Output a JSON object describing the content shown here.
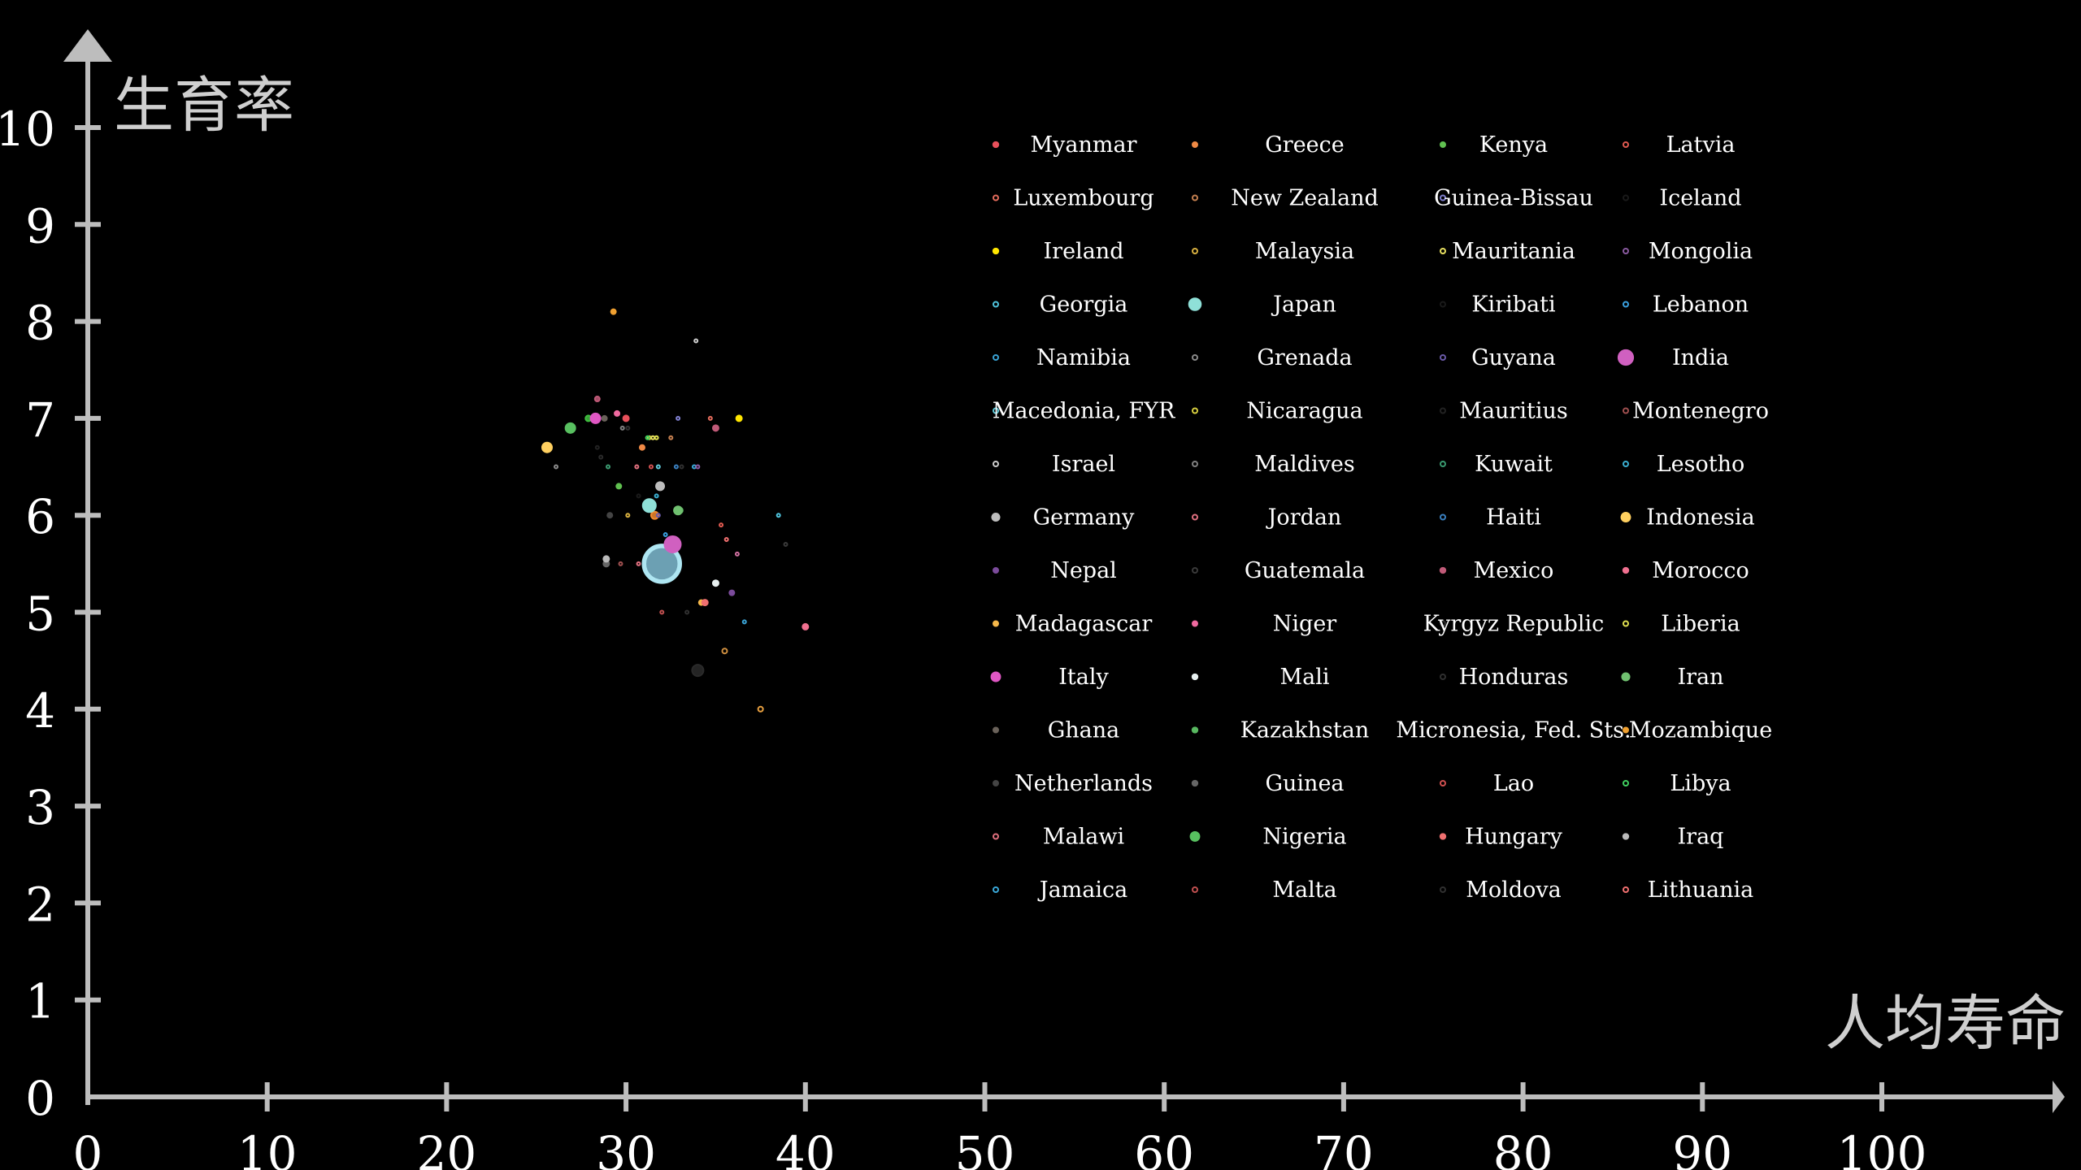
{
  "chart_data": {
    "type": "scatter",
    "xlabel": "人均寿命",
    "ylabel": "生育率",
    "xlim": [
      0,
      110
    ],
    "ylim": [
      0,
      11
    ],
    "x_ticks": [
      "0",
      "10",
      "20",
      "30",
      "40",
      "50",
      "60",
      "70",
      "80",
      "90",
      "100"
    ],
    "y_ticks": [
      "0",
      "1",
      "2",
      "3",
      "4",
      "5",
      "6",
      "7",
      "8",
      "9",
      "10"
    ],
    "grid": false,
    "legend_placement": "right",
    "series": [
      {
        "name": "Myanmar",
        "color": "#e8505b",
        "x": [
          30.0
        ],
        "y": [
          7.0
        ],
        "size": [
          7
        ]
      },
      {
        "name": "Luxembourg",
        "color": "#e46c5c",
        "x": [
          34.7
        ],
        "y": [
          7.0
        ],
        "size": [
          4
        ]
      },
      {
        "name": "Ireland",
        "color": "#ffe600",
        "x": [
          36.3
        ],
        "y": [
          7.0
        ],
        "size": [
          7
        ]
      },
      {
        "name": "Georgia",
        "color": "#4fc3dc",
        "x": [
          38.5
        ],
        "y": [
          6.0
        ],
        "size": [
          4
        ]
      },
      {
        "name": "Namibia",
        "color": "#3aa2d4",
        "x": [
          36.6
        ],
        "y": [
          4.9
        ],
        "size": [
          4
        ]
      },
      {
        "name": "Macedonia, FYR",
        "color": "#5fc8d8",
        "x": [
          31.8
        ],
        "y": [
          6.5
        ],
        "size": [
          4
        ]
      },
      {
        "name": "Israel",
        "color": "#cccccc",
        "x": [
          33.9
        ],
        "y": [
          7.8
        ],
        "size": [
          4
        ]
      },
      {
        "name": "Germany",
        "color": "#bdbdbd",
        "x": [
          31.9
        ],
        "y": [
          6.3
        ],
        "size": [
          10
        ]
      },
      {
        "name": "Nepal",
        "color": "#7b4b9b",
        "x": [
          35.9
        ],
        "y": [
          5.2
        ],
        "size": [
          6
        ]
      },
      {
        "name": "Madagascar",
        "color": "#f6b84a",
        "x": [
          34.2
        ],
        "y": [
          5.1
        ],
        "size": [
          6
        ]
      },
      {
        "name": "Italy",
        "color": "#e057c4",
        "x": [
          28.3
        ],
        "y": [
          7.0
        ],
        "size": [
          12
        ]
      },
      {
        "name": "Ghana",
        "color": "#6a625a",
        "x": [
          28.8
        ],
        "y": [
          7.0
        ],
        "size": [
          6
        ]
      },
      {
        "name": "Netherlands",
        "color": "#444444",
        "x": [
          29.1
        ],
        "y": [
          6.0
        ],
        "size": [
          6
        ]
      },
      {
        "name": "Malawi",
        "color": "#e0707e",
        "x": [
          30.6
        ],
        "y": [
          6.5
        ],
        "size": [
          4
        ]
      },
      {
        "name": "Jamaica",
        "color": "#3aa8d8",
        "x": [
          33.8
        ],
        "y": [
          6.5
        ],
        "size": [
          4
        ]
      },
      {
        "name": "Greece",
        "color": "#f08a45",
        "x": [
          30.9
        ],
        "y": [
          6.7
        ],
        "size": [
          6
        ]
      },
      {
        "name": "New Zealand",
        "color": "#c58050",
        "x": [
          32.5
        ],
        "y": [
          6.8
        ],
        "size": [
          4
        ]
      },
      {
        "name": "Malaysia",
        "color": "#d8b040",
        "x": [
          30.1
        ],
        "y": [
          6.0
        ],
        "size": [
          4
        ]
      },
      {
        "name": "Japan",
        "color": "#8fe0d8",
        "x": [
          31.3
        ],
        "y": [
          6.1
        ],
        "size": [
          16
        ]
      },
      {
        "name": "Grenada",
        "color": "#8a8a8a",
        "x": [
          26.1
        ],
        "y": [
          6.5
        ],
        "size": [
          4
        ]
      },
      {
        "name": "Nicaragua",
        "color": "#d8d040",
        "x": [
          31.3
        ],
        "y": [
          6.8
        ],
        "size": [
          4
        ]
      },
      {
        "name": "Maldives",
        "color": "#808080",
        "x": [
          29.8
        ],
        "y": [
          6.9
        ],
        "size": [
          4
        ]
      },
      {
        "name": "Jordan",
        "color": "#e07080",
        "x": [
          30.7
        ],
        "y": [
          5.5
        ],
        "size": [
          4
        ]
      },
      {
        "name": "Guatemala",
        "color": "#3a3a3a",
        "x": [
          38.9
        ],
        "y": [
          5.7
        ],
        "size": [
          4
        ]
      },
      {
        "name": "Niger",
        "color": "#f06aa0",
        "x": [
          29.5
        ],
        "y": [
          7.05
        ],
        "size": [
          6
        ]
      },
      {
        "name": "Mali",
        "color": "#e8f0f0",
        "x": [
          35.0
        ],
        "y": [
          5.3
        ],
        "size": [
          7
        ]
      },
      {
        "name": "Kazakhstan",
        "color": "#58b860",
        "x": [
          33.0
        ],
        "y": [
          6.05
        ],
        "size": [
          7
        ]
      },
      {
        "name": "Guinea",
        "color": "#666666",
        "x": [
          28.9
        ],
        "y": [
          5.5
        ],
        "size": [
          7
        ]
      },
      {
        "name": "Nigeria",
        "color": "#58c060",
        "x": [
          26.9
        ],
        "y": [
          6.9
        ],
        "size": [
          12
        ]
      },
      {
        "name": "Malta",
        "color": "#c05050",
        "x": [
          32.0
        ],
        "y": [
          5.0
        ],
        "size": [
          4
        ]
      },
      {
        "name": "Kenya",
        "color": "#60c050",
        "x": [
          29.6
        ],
        "y": [
          6.3
        ],
        "size": [
          6
        ]
      },
      {
        "name": "Guinea-Bissau",
        "color": "#8080d0",
        "x": [
          32.9
        ],
        "y": [
          7.0
        ],
        "size": [
          4
        ]
      },
      {
        "name": "Mauritania",
        "color": "#e8e060",
        "x": [
          31.5
        ],
        "y": [
          6.8
        ],
        "size": [
          4
        ]
      },
      {
        "name": "Kiribati",
        "color": "#1a1a1a",
        "x": [
          29.0
        ],
        "y": [
          6.5
        ],
        "size": [
          4
        ]
      },
      {
        "name": "Guyana",
        "color": "#6a5aa8",
        "x": [
          31.8
        ],
        "y": [
          6.0
        ],
        "size": [
          4
        ]
      },
      {
        "name": "Mauritius",
        "color": "#222222",
        "x": [
          28.4
        ],
        "y": [
          6.7
        ],
        "size": [
          4
        ]
      },
      {
        "name": "Kuwait",
        "color": "#3a9a70",
        "x": [
          29.0
        ],
        "y": [
          6.5
        ],
        "size": [
          4
        ]
      },
      {
        "name": "Haiti",
        "color": "#3a80c0",
        "x": [
          32.8
        ],
        "y": [
          6.5
        ],
        "size": [
          4
        ]
      },
      {
        "name": "Mexico",
        "color": "#c05a78",
        "x": [
          35.0
        ],
        "y": [
          6.9
        ],
        "size": [
          7
        ]
      },
      {
        "name": "Kyrgyz Republic",
        "color": "#303030",
        "x": [
          33.4
        ],
        "y": [
          5.0
        ],
        "size": [
          4
        ]
      },
      {
        "name": "Honduras",
        "color": "#303030",
        "x": [
          30.1
        ],
        "y": [
          6.9
        ],
        "size": [
          4
        ]
      },
      {
        "name": "Micronesia, Fed. Sts.",
        "color": "#2a2a2a",
        "x": [
          28.6
        ],
        "y": [
          6.6
        ],
        "size": [
          4
        ]
      },
      {
        "name": "Lao",
        "color": "#d05050",
        "x": [
          31.4
        ],
        "y": [
          6.5
        ],
        "size": [
          4
        ]
      },
      {
        "name": "Hungary",
        "color": "#f07070",
        "x": [
          34.4
        ],
        "y": [
          5.1
        ],
        "size": [
          7
        ]
      },
      {
        "name": "Moldova",
        "color": "#303030",
        "x": [
          33.1
        ],
        "y": [
          6.5
        ],
        "size": [
          4
        ]
      },
      {
        "name": "Latvia",
        "color": "#e05a50",
        "x": [
          35.3
        ],
        "y": [
          5.9
        ],
        "size": [
          4
        ]
      },
      {
        "name": "Iceland",
        "color": "#1a1a1a",
        "x": [
          30.7
        ],
        "y": [
          6.2
        ],
        "size": [
          4
        ]
      },
      {
        "name": "Mongolia",
        "color": "#8a5aa0",
        "x": [
          34.0
        ],
        "y": [
          6.5
        ],
        "size": [
          4
        ]
      },
      {
        "name": "Lebanon",
        "color": "#3aa0e0",
        "x": [
          32.2
        ],
        "y": [
          5.8
        ],
        "size": [
          4
        ]
      },
      {
        "name": "India",
        "color": "#d060c0",
        "x": [
          32.6
        ],
        "y": [
          5.7
        ],
        "size": [
          20
        ]
      },
      {
        "name": "Montenegro",
        "color": "#a05050",
        "x": [
          29.7
        ],
        "y": [
          5.5
        ],
        "size": [
          4
        ]
      },
      {
        "name": "Lesotho",
        "color": "#3aaed0",
        "x": [
          31.7
        ],
        "y": [
          6.2
        ],
        "size": [
          4
        ]
      },
      {
        "name": "Indonesia",
        "color": "#ffd060",
        "x": [
          25.6
        ],
        "y": [
          6.7
        ],
        "size": [
          12
        ]
      },
      {
        "name": "Morocco",
        "color": "#f07090",
        "x": [
          40.0
        ],
        "y": [
          4.85
        ],
        "size": [
          7
        ]
      },
      {
        "name": "Liberia",
        "color": "#e0e050",
        "x": [
          31.7
        ],
        "y": [
          6.8
        ],
        "size": [
          4
        ]
      },
      {
        "name": "Iran",
        "color": "#70c070",
        "x": [
          32.9
        ],
        "y": [
          6.05
        ],
        "size": [
          10
        ]
      },
      {
        "name": "Mozambique",
        "color": "#f0a030",
        "x": [
          29.3
        ],
        "y": [
          8.1
        ],
        "size": [
          6
        ]
      },
      {
        "name": "Libya",
        "color": "#40d060",
        "x": [
          31.2
        ],
        "y": [
          6.8
        ],
        "size": [
          4
        ]
      },
      {
        "name": "Iraq",
        "color": "#bbbbbb",
        "x": [
          28.9
        ],
        "y": [
          5.55
        ],
        "size": [
          7
        ]
      },
      {
        "name": "Lithuania",
        "color": "#f07070",
        "x": [
          35.6
        ],
        "y": [
          5.75
        ],
        "size": [
          4
        ]
      }
    ],
    "extra_points": [
      {
        "color": "#aee6f2",
        "fill": "#7fbcd2",
        "x": 32.0,
        "y": 5.5,
        "size": 44
      },
      {
        "color": "#2a2a2a",
        "fill": "#2a2a2a",
        "x": 34.0,
        "y": 4.4,
        "size": 14
      },
      {
        "color": "#f08a30",
        "fill": "#f08a30",
        "x": 31.6,
        "y": 6.0,
        "size": 9
      },
      {
        "color": "#e8a040",
        "fill": "none",
        "x": 37.5,
        "y": 4.0,
        "size": 6
      },
      {
        "color": "#d09040",
        "fill": "none",
        "x": 35.5,
        "y": 4.6,
        "size": 6
      },
      {
        "color": "#d070a0",
        "fill": "none",
        "x": 36.2,
        "y": 5.6,
        "size": 4
      },
      {
        "color": "#40c040",
        "fill": "#40c040",
        "x": 27.9,
        "y": 7.0,
        "size": 7
      },
      {
        "color": "#c05a78",
        "fill": "#c05a78",
        "x": 28.4,
        "y": 7.2,
        "size": 6
      }
    ]
  }
}
